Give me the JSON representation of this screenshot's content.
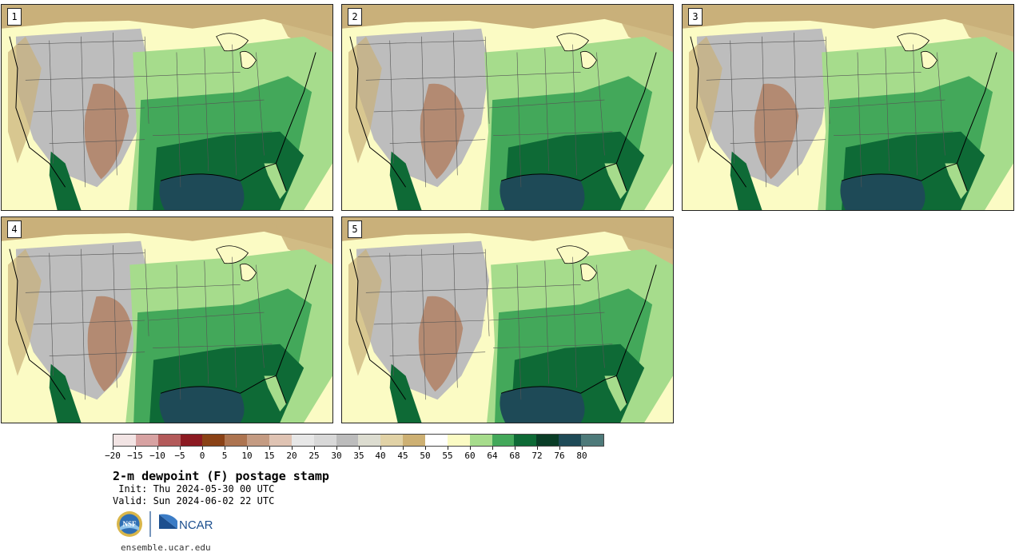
{
  "colors": {
    "ocean_deep": "#1e4a57",
    "land_tan": "#c9b07a",
    "gray": "#bdbdbd",
    "brown": "#b07a5a",
    "green_light": "#a6dc8c",
    "green_mid": "#43a85a",
    "green_dark": "#0e6a36",
    "pale_yellow": "#fbfbc4"
  },
  "panels": [
    {
      "label": "1"
    },
    {
      "label": "2"
    },
    {
      "label": "3"
    },
    {
      "label": "4"
    },
    {
      "label": "5"
    }
  ],
  "colorbar": {
    "segment_colors": [
      "#f2e4e4",
      "#d7a2a2",
      "#b35a5a",
      "#8c1a22",
      "#8a4216",
      "#ad7450",
      "#c49b82",
      "#dfc3b3",
      "#e7e7e7",
      "#d8d8d8",
      "#bcbcbc",
      "#dcdcd0",
      "#e1d2a6",
      "#cdb073",
      "#ffffff",
      "#fbfbc4",
      "#a6dc8c",
      "#43a85a",
      "#0e6a36",
      "#0a3d27",
      "#1e4a57",
      "#4e7a7a"
    ],
    "tick_labels": [
      "−20",
      "−15",
      "−10",
      "−5",
      "0",
      "5",
      "10",
      "15",
      "20",
      "25",
      "30",
      "35",
      "40",
      "45",
      "50",
      "55",
      "60",
      "64",
      "68",
      "72",
      "76",
      "80"
    ]
  },
  "title": "2-m dewpoint (F) postage stamp",
  "init": " Init: Thu 2024-05-30 00 UTC",
  "valid": "Valid: Sun 2024-06-02 22 UTC",
  "logos": {
    "nsf_text": "NSF",
    "ncar_text": "NCAR"
  },
  "footer": "ensemble.ucar.edu"
}
